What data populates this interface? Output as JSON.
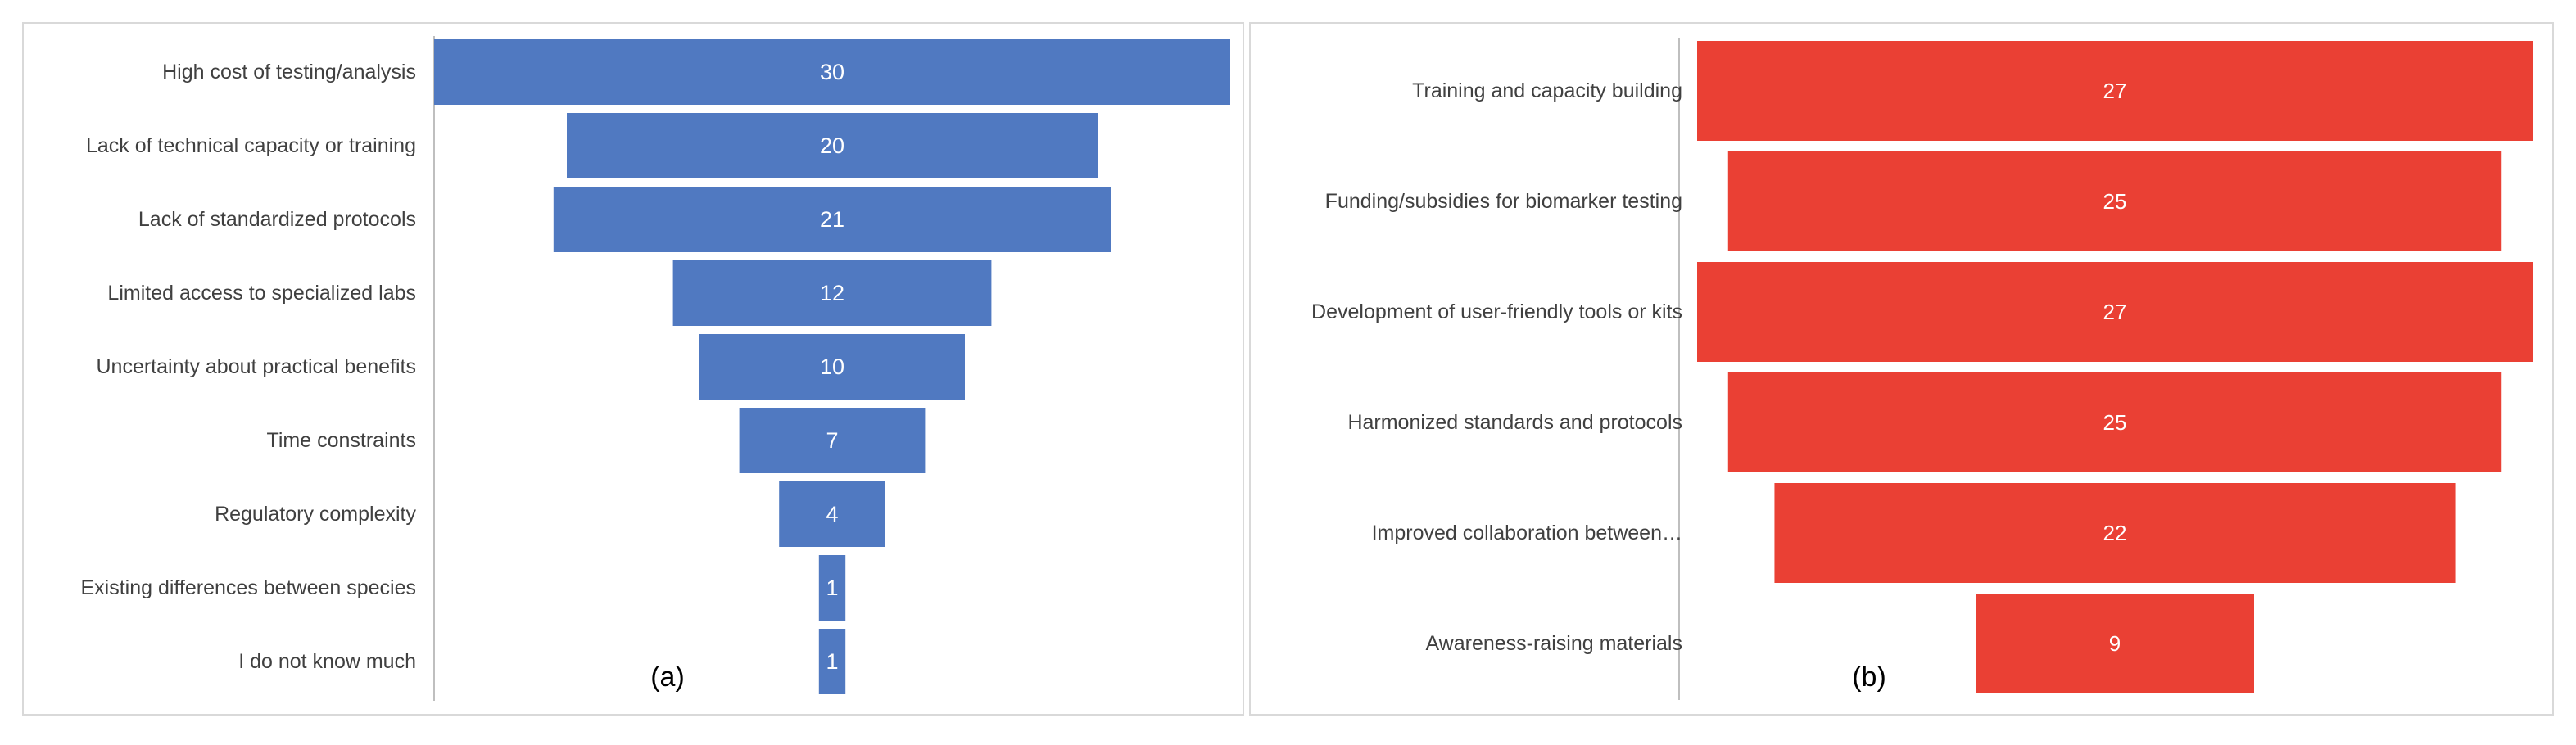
{
  "chart_data": [
    {
      "type": "bar",
      "orientation": "horizontal-funnel",
      "panel_label": "(a)",
      "categories": [
        "High cost of testing/analysis",
        "Lack of technical capacity or training",
        "Lack of standardized protocols",
        "Limited access to specialized labs",
        "Uncertainty about practical benefits",
        "Time constraints",
        "Regulatory complexity",
        "Existing differences between species",
        "I do not know much"
      ],
      "values": [
        30,
        20,
        21,
        12,
        10,
        7,
        4,
        1,
        1
      ],
      "data_labels": [
        "30",
        "20",
        "21",
        "12",
        "10",
        "7",
        "4",
        "1",
        "1"
      ],
      "color": "#5079C1",
      "xlim": [
        0,
        30
      ],
      "grid": false,
      "legend": "none"
    },
    {
      "type": "bar",
      "orientation": "horizontal-funnel",
      "panel_label": "(b)",
      "categories": [
        "Training and capacity building",
        "Funding/subsidies for biomarker testing",
        "Development of user-friendly tools or kits",
        "Harmonized standards and protocols",
        "Improved collaboration between…",
        "Awareness-raising materials"
      ],
      "values": [
        27,
        25,
        27,
        25,
        22,
        9
      ],
      "data_labels": [
        "27",
        "25",
        "27",
        "25",
        "22",
        "9"
      ],
      "color": "#EA4034",
      "xlim": [
        0,
        27
      ],
      "grid": false,
      "legend": "none"
    }
  ],
  "colors": {
    "frame": "#D9D9D9",
    "axis": "#BFBFBF",
    "label_text": "#404040",
    "value_text": "#FFFFFF",
    "panel_label_text": "#000000"
  }
}
